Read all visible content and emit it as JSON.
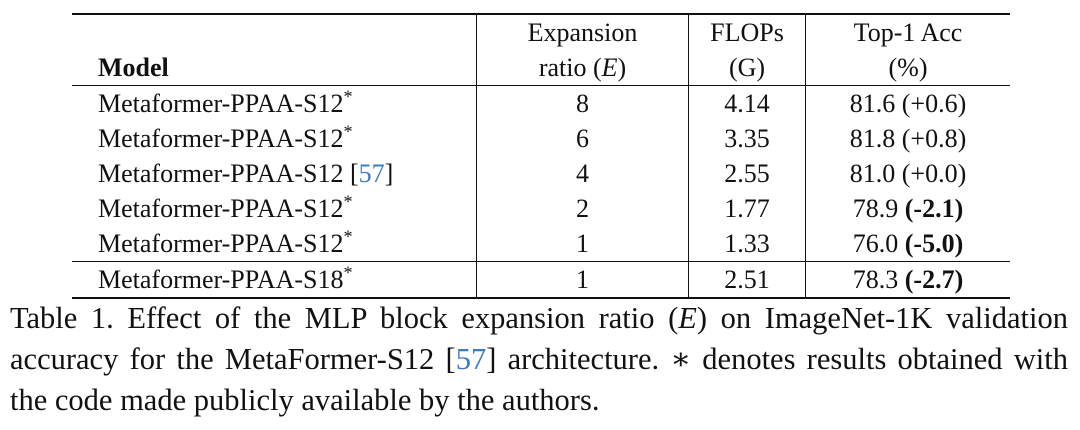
{
  "table": {
    "header": [
      [
        [
          {
            "text": "Model",
            "style": "bold"
          }
        ]
      ],
      [
        [
          {
            "text": "Expansion"
          }
        ],
        [
          {
            "text": "ratio ("
          },
          {
            "text": "E",
            "style": "italic"
          },
          {
            "text": ")"
          }
        ]
      ],
      [
        [
          {
            "text": "FLOPs"
          }
        ],
        [
          {
            "text": "(G)"
          }
        ]
      ],
      [
        [
          {
            "text": "Top-1 Acc"
          }
        ],
        [
          {
            "text": "(%)"
          }
        ]
      ]
    ],
    "rows": [
      {
        "cells": [
          [
            {
              "text": "Metaformer-PPAA-S12"
            },
            {
              "text": "*",
              "style": "sup"
            }
          ],
          [
            {
              "text": "8"
            }
          ],
          [
            {
              "text": "4.14"
            }
          ],
          [
            {
              "text": "81.6 (+0.6)"
            }
          ]
        ]
      },
      {
        "cells": [
          [
            {
              "text": "Metaformer-PPAA-S12"
            },
            {
              "text": "*",
              "style": "sup"
            }
          ],
          [
            {
              "text": "6"
            }
          ],
          [
            {
              "text": "3.35"
            }
          ],
          [
            {
              "text": "81.8 (+0.8)"
            }
          ]
        ]
      },
      {
        "cells": [
          [
            {
              "text": "Metaformer-PPAA-S12 ["
            },
            {
              "text": "57",
              "style": "cite"
            },
            {
              "text": "]"
            }
          ],
          [
            {
              "text": "4"
            }
          ],
          [
            {
              "text": "2.55"
            }
          ],
          [
            {
              "text": "81.0 (+0.0)"
            }
          ]
        ]
      },
      {
        "cells": [
          [
            {
              "text": "Metaformer-PPAA-S12"
            },
            {
              "text": "*",
              "style": "sup"
            }
          ],
          [
            {
              "text": "2"
            }
          ],
          [
            {
              "text": "1.77"
            }
          ],
          [
            {
              "text": "78.9 "
            },
            {
              "text": "(-2.1)",
              "style": "bold"
            }
          ]
        ]
      },
      {
        "cells": [
          [
            {
              "text": "Metaformer-PPAA-S12"
            },
            {
              "text": "*",
              "style": "sup"
            }
          ],
          [
            {
              "text": "1"
            }
          ],
          [
            {
              "text": "1.33"
            }
          ],
          [
            {
              "text": "76.0 "
            },
            {
              "text": "(-5.0)",
              "style": "bold"
            }
          ]
        ]
      },
      {
        "rule_above": true,
        "cells": [
          [
            {
              "text": "Metaformer-PPAA-S18"
            },
            {
              "text": "*",
              "style": "sup"
            }
          ],
          [
            {
              "text": "1"
            }
          ],
          [
            {
              "text": "2.51"
            }
          ],
          [
            {
              "text": "78.3 "
            },
            {
              "text": "(-2.7)",
              "style": "bold"
            }
          ]
        ]
      }
    ]
  },
  "caption": [
    {
      "text": "Table 1.  Effect of the MLP block expansion ratio ("
    },
    {
      "text": "E",
      "style": "italic"
    },
    {
      "text": ") on ImageNet-1K validation accuracy for the MetaFormer-S12 ["
    },
    {
      "text": "57",
      "style": "cite"
    },
    {
      "text": "] architecture. ∗ denotes results obtained with the code made publicly available by the authors."
    }
  ]
}
